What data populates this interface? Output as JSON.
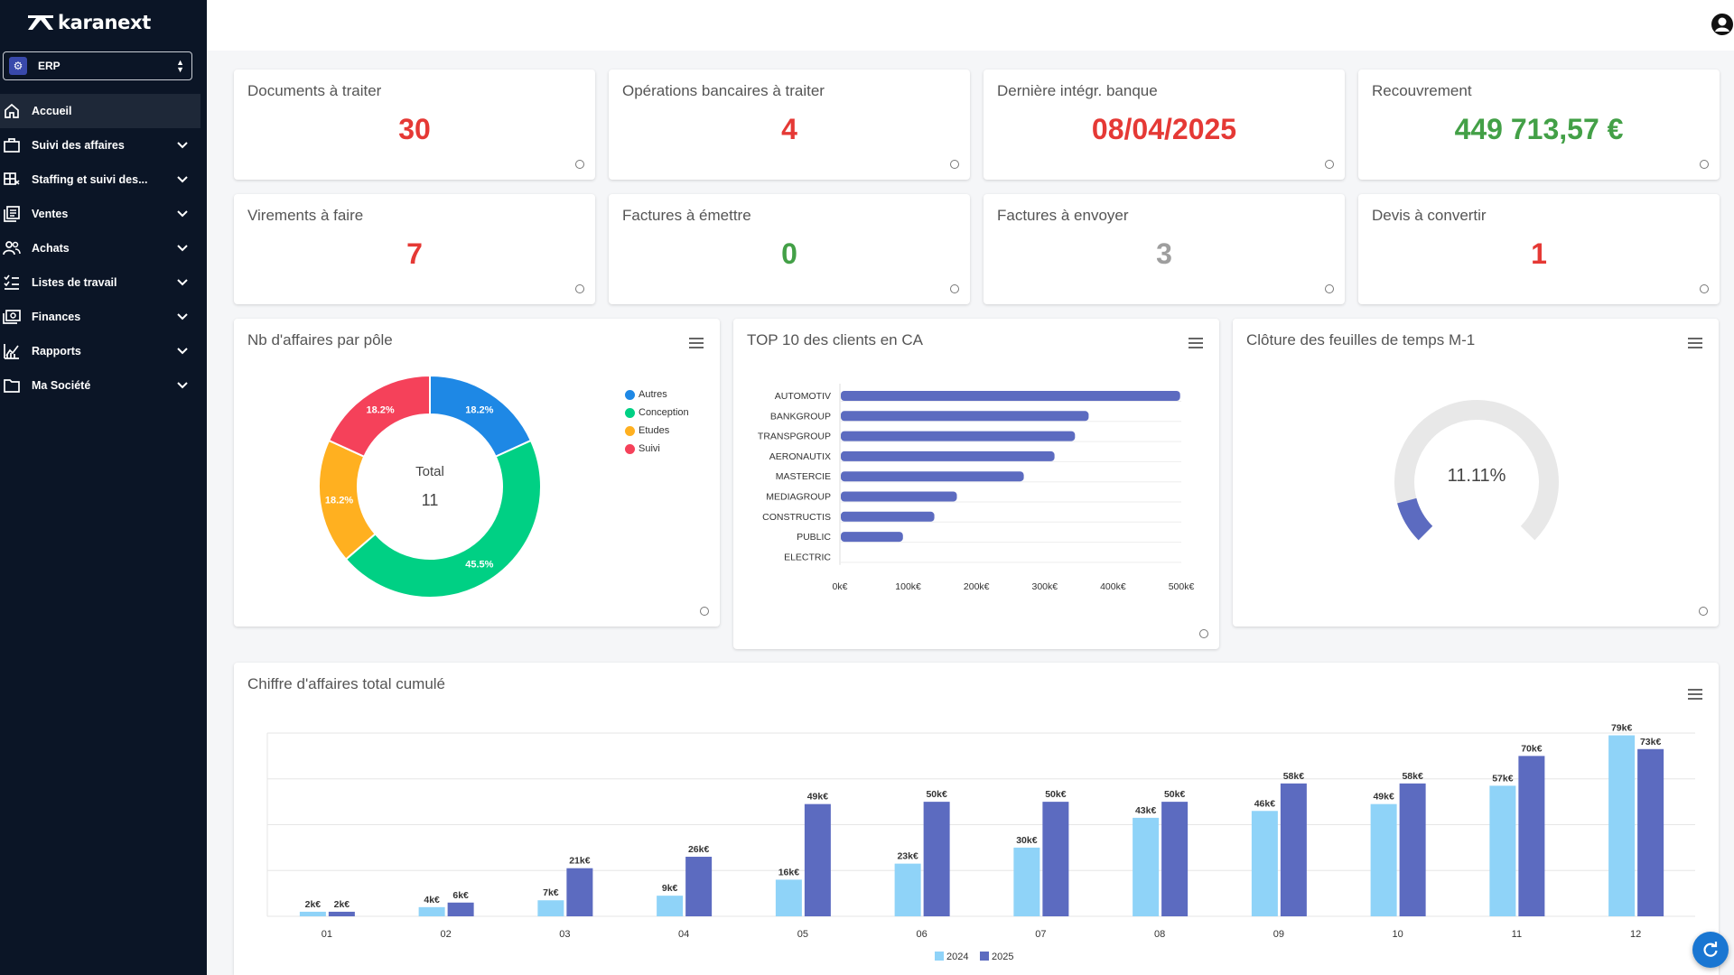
{
  "app": {
    "brand": "karanext"
  },
  "module_select": {
    "value": "ERP"
  },
  "sidebar": {
    "items": [
      {
        "label": "Accueil",
        "icon": "home-icon",
        "active": true,
        "expandable": false
      },
      {
        "label": "Suivi des affaires",
        "icon": "briefcase-icon",
        "expandable": true
      },
      {
        "label": "Staffing et suivi des...",
        "icon": "grid-icon",
        "expandable": true
      },
      {
        "label": "Ventes",
        "icon": "sales-icon",
        "expandable": true
      },
      {
        "label": "Achats",
        "icon": "people-icon",
        "expandable": true
      },
      {
        "label": "Listes de travail",
        "icon": "checklist-icon",
        "expandable": true
      },
      {
        "label": "Finances",
        "icon": "money-icon",
        "expandable": true
      },
      {
        "label": "Rapports",
        "icon": "report-icon",
        "expandable": true
      },
      {
        "label": "Ma Société",
        "icon": "folder-icon",
        "expandable": true
      }
    ]
  },
  "kpis": [
    {
      "title": "Documents à traiter",
      "value": "30",
      "color": "#e53935"
    },
    {
      "title": "Opérations bancaires à traiter",
      "value": "4",
      "color": "#e53935"
    },
    {
      "title": "Dernière intégr. banque",
      "value": "08/04/2025",
      "color": "#e53935"
    },
    {
      "title": "Recouvrement",
      "value": "449 713,57 €",
      "color": "#43a047"
    },
    {
      "title": "Virements à faire",
      "value": "7",
      "color": "#e53935"
    },
    {
      "title": "Factures à émettre",
      "value": "0",
      "color": "#43a047"
    },
    {
      "title": "Factures à envoyer",
      "value": "3",
      "color": "#9e9e9e"
    },
    {
      "title": "Devis à convertir",
      "value": "1",
      "color": "#e53935"
    }
  ],
  "charts": {
    "donut": {
      "title": "Nb d'affaires par pôle",
      "center_label": "Total",
      "center_value": "11"
    },
    "top_clients": {
      "title": "TOP 10 des clients en CA"
    },
    "gauge": {
      "title": "Clôture des feuilles de temps M-1",
      "value_label": "11.11%"
    },
    "revenue": {
      "title": "Chiffre d'affaires total cumulé"
    }
  },
  "chart_data": [
    {
      "type": "pie",
      "title": "Nb d'affaires par pôle",
      "labels": [
        "Autres",
        "Conception",
        "Etudes",
        "Suivi"
      ],
      "values": [
        2,
        5,
        2,
        2
      ],
      "percent_labels": [
        "18.2%",
        "45.5%",
        "18.2%",
        "18.2%"
      ],
      "colors": [
        "#1e88e5",
        "#00d084",
        "#ffb020",
        "#f5415a"
      ],
      "legend": "top-right",
      "center_label": "Total",
      "center_value": "11"
    },
    {
      "type": "bar",
      "orientation": "horizontal",
      "title": "TOP 10 des clients en CA",
      "categories": [
        "AUTOMOTIV",
        "BANKGROUP",
        "TRANSPGROUP",
        "AERONAUTIX",
        "MASTERCIE",
        "MEDIAGROUP",
        "CONSTRUCTIS",
        "PUBLIC",
        "ELECTRIC"
      ],
      "values": [
        497,
        363,
        343,
        313,
        268,
        170,
        137,
        91,
        0
      ],
      "x_ticks": [
        "0k€",
        "100k€",
        "200k€",
        "300k€",
        "400k€",
        "500k€"
      ],
      "xlim": [
        0,
        500
      ],
      "color": "#5c6bc0"
    },
    {
      "type": "gauge",
      "title": "Clôture des feuilles de temps M-1",
      "value": 11.11,
      "value_label": "11.11%",
      "color": "#5c6bc0",
      "track_color": "#e8e8e8"
    },
    {
      "type": "bar",
      "title": "Chiffre d'affaires total cumulé",
      "categories": [
        "01",
        "02",
        "03",
        "04",
        "05",
        "06",
        "07",
        "08",
        "09",
        "10",
        "11",
        "12"
      ],
      "series": [
        {
          "name": "2024",
          "values": [
            2,
            4,
            7,
            9,
            16,
            23,
            30,
            43,
            46,
            49,
            57,
            79
          ],
          "labels": [
            "2k€",
            "4k€",
            "7k€",
            "9k€",
            "16k€",
            "23k€",
            "30k€",
            "43k€",
            "46k€",
            "49k€",
            "57k€",
            "79k€"
          ],
          "color": "#8fd3f8"
        },
        {
          "name": "2025",
          "values": [
            2,
            6,
            21,
            26,
            49,
            50,
            50,
            50,
            58,
            58,
            70,
            73
          ],
          "labels": [
            "2k€",
            "6k€",
            "21k€",
            "26k€",
            "49k€",
            "50k€",
            "50k€",
            "50k€",
            "58k€",
            "58k€",
            "70k€",
            "73k€"
          ],
          "color": "#5c6bc0"
        }
      ],
      "ylim": [
        0,
        80
      ],
      "grid": true,
      "legend": "bottom-center"
    }
  ]
}
